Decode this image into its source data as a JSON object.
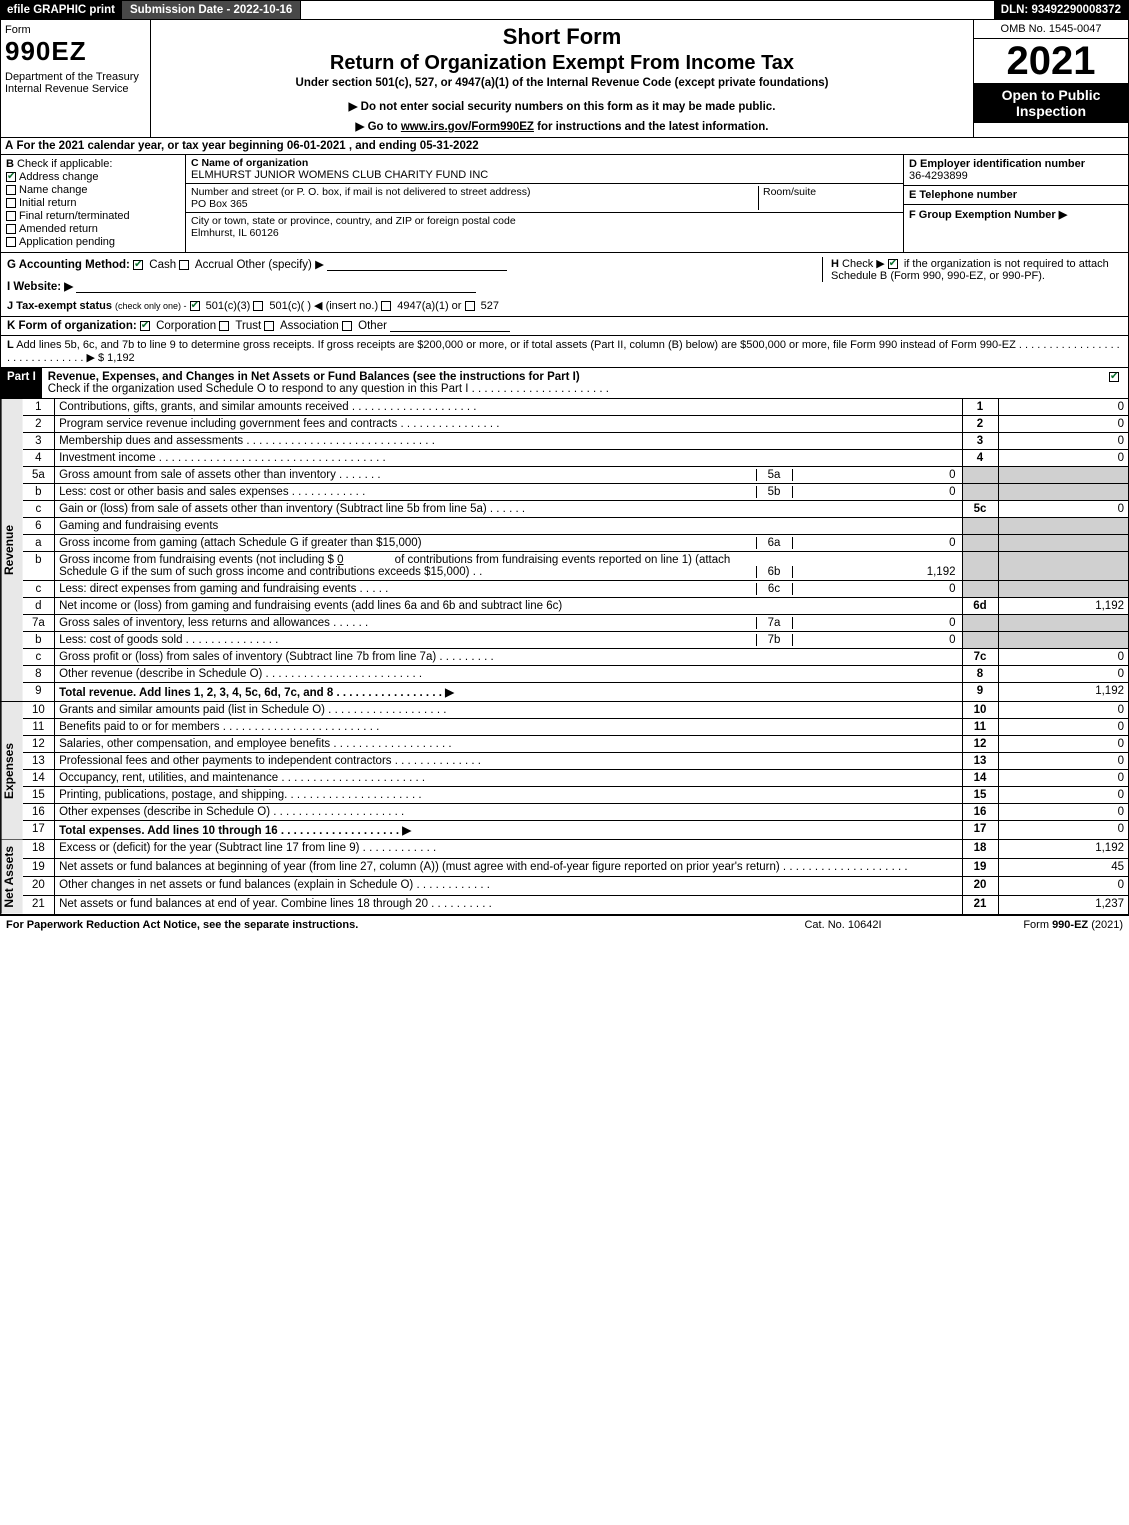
{
  "topbar": {
    "efile": "efile GRAPHIC print",
    "submission": "Submission Date - 2022-10-16",
    "dln": "DLN: 93492290008372"
  },
  "header": {
    "form_word": "Form",
    "form_code": "990EZ",
    "dept": "Department of the Treasury\nInternal Revenue Service",
    "short_form": "Short Form",
    "return_of": "Return of Organization Exempt From Income Tax",
    "under_sec": "Under section 501(c), 527, or 4947(a)(1) of the Internal Revenue Code (except private foundations)",
    "do_not": "▶ Do not enter social security numbers on this form as it may be made public.",
    "go_to_pre": "▶ Go to ",
    "go_to_link": "www.irs.gov/Form990EZ",
    "go_to_post": " for instructions and the latest information.",
    "omb": "OMB No. 1545-0047",
    "year": "2021",
    "open_to": "Open to Public Inspection"
  },
  "line_a": {
    "label": "A",
    "text": "For the 2021 calendar year, or tax year beginning 06-01-2021 , and ending 05-31-2022"
  },
  "section_b": {
    "label": "B",
    "check_if": "Check if applicable:",
    "items": [
      {
        "label": "Address change",
        "checked": true
      },
      {
        "label": "Name change",
        "checked": false
      },
      {
        "label": "Initial return",
        "checked": false
      },
      {
        "label": "Final return/terminated",
        "checked": false
      },
      {
        "label": "Amended return",
        "checked": false
      },
      {
        "label": "Application pending",
        "checked": false
      }
    ]
  },
  "section_c": {
    "name_label": "C Name of organization",
    "name": "ELMHURST JUNIOR WOMENS CLUB CHARITY FUND INC",
    "addr_label": "Number and street (or P. O. box, if mail is not delivered to street address)",
    "addr": "PO Box 365",
    "room_label": "Room/suite",
    "city_label": "City or town, state or province, country, and ZIP or foreign postal code",
    "city": "Elmhurst, IL  60126"
  },
  "section_d": {
    "label": "D Employer identification number",
    "value": "36-4293899"
  },
  "section_e": {
    "label": "E Telephone number",
    "value": ""
  },
  "section_f": {
    "label": "F Group Exemption Number  ▶",
    "value": ""
  },
  "section_g": {
    "label": "G Accounting Method:",
    "cash": "Cash",
    "accrual": "Accrual",
    "other": "Other (specify) ▶"
  },
  "section_h": {
    "label": "H",
    "text1": "Check ▶",
    "text2": "if the organization is not required to attach Schedule B (Form 990, 990-EZ, or 990-PF)."
  },
  "section_i": {
    "label": "I Website: ▶"
  },
  "section_j": {
    "label": "J Tax-exempt status",
    "sub": "(check only one) -",
    "opt1": "501(c)(3)",
    "opt2": "501(c)( )",
    "insert": "◀ (insert no.)",
    "opt3": "4947(a)(1) or",
    "opt4": "527"
  },
  "section_k": {
    "label": "K Form of organization:",
    "corp": "Corporation",
    "trust": "Trust",
    "assoc": "Association",
    "other": "Other"
  },
  "section_l": {
    "label": "L",
    "text": "Add lines 5b, 6c, and 7b to line 9 to determine gross receipts. If gross receipts are $200,000 or more, or if total assets (Part II, column (B) below) are $500,000 or more, file Form 990 instead of Form 990-EZ  .  .  .  .  .  .  .  .  .  .  .  .  .  .  .  .  .  .  .  .  .  .  .  .  .  .  .  .  .  . ▶ $ 1,192"
  },
  "part1": {
    "header": "Part I",
    "title": "Revenue, Expenses, and Changes in Net Assets or Fund Balances (see the instructions for Part I)",
    "check_text": "Check if the organization used Schedule O to respond to any question in this Part I  .  .  .  .  .  .  .  .  .  .  .  .  .  .  .  .  .  .  .  .  .  ."
  },
  "revenue_label": "Revenue",
  "expenses_label": "Expenses",
  "netassets_label": "Net Assets",
  "rows_revenue": [
    {
      "n": "1",
      "desc": "Contributions, gifts, grants, and similar amounts received  .  .  .  .  .  .  .  .  .  .  .  .  .  .  .  .  .  .  .  .",
      "ref": "1",
      "amt": "0"
    },
    {
      "n": "2",
      "desc": "Program service revenue including government fees and contracts  .  .  .  .  .  .  .  .  .  .  .  .  .  .  .  .",
      "ref": "2",
      "amt": "0"
    },
    {
      "n": "3",
      "desc": "Membership dues and assessments  .  .  .  .  .  .  .  .  .  .  .  .  .  .  .  .  .  .  .  .  .  .  .  .  .  .  .  .  .  .",
      "ref": "3",
      "amt": "0"
    },
    {
      "n": "4",
      "desc": "Investment income  .  .  .  .  .  .  .  .  .  .  .  .  .  .  .  .  .  .  .  .  .  .  .  .  .  .  .  .  .  .  .  .  .  .  .  .",
      "ref": "4",
      "amt": "0"
    }
  ],
  "rows_5": [
    {
      "n": "5a",
      "desc": "Gross amount from sale of assets other than inventory  .  .  .  .  .  .  .",
      "sref": "5a",
      "samt": "0"
    },
    {
      "n": "b",
      "desc": "Less: cost or other basis and sales expenses  .  .  .  .  .  .  .  .  .  .  .  .",
      "sref": "5b",
      "samt": "0"
    },
    {
      "n": "c",
      "desc": "Gain or (loss) from sale of assets other than inventory (Subtract line 5b from line 5a)  .  .  .  .  .  .",
      "ref": "5c",
      "amt": "0"
    }
  ],
  "rows_6": {
    "n6": "6",
    "desc6": "Gaming and fundraising events",
    "na": "a",
    "desca": "Gross income from gaming (attach Schedule G if greater than $15,000)",
    "srefa": "6a",
    "samta": "0",
    "nb": "b",
    "descb1": "Gross income from fundraising events (not including $",
    "descb_amt": "0",
    "descb2": "of contributions from fundraising events reported on line 1) (attach Schedule G if the sum of such gross income and contributions exceeds $15,000)   .   .",
    "srefb": "6b",
    "samtb": "1,192",
    "nc": "c",
    "descc": "Less: direct expenses from gaming and fundraising events  .  .  .  .  .",
    "srefc": "6c",
    "samtc": "0",
    "nd": "d",
    "descd": "Net income or (loss) from gaming and fundraising events (add lines 6a and 6b and subtract line 6c)",
    "refd": "6d",
    "amtd": "1,192"
  },
  "rows_7": [
    {
      "n": "7a",
      "desc": "Gross sales of inventory, less returns and allowances  .  .  .  .  .  .",
      "sref": "7a",
      "samt": "0"
    },
    {
      "n": "b",
      "desc": "Less: cost of goods sold       .  .  .  .  .  .  .  .  .  .  .  .  .  .  .",
      "sref": "7b",
      "samt": "0"
    },
    {
      "n": "c",
      "desc": "Gross profit or (loss) from sales of inventory (Subtract line 7b from line 7a)  .  .  .  .  .  .  .  .  .",
      "ref": "7c",
      "amt": "0"
    }
  ],
  "rows_89": [
    {
      "n": "8",
      "desc": "Other revenue (describe in Schedule O)  .  .  .  .  .  .  .  .  .  .  .  .  .  .  .  .  .  .  .  .  .  .  .  .  .",
      "ref": "8",
      "amt": "0"
    },
    {
      "n": "9",
      "desc": "Total revenue. Add lines 1, 2, 3, 4, 5c, 6d, 7c, and 8   .  .  .  .  .  .  .  .  .  .  .  .  .  .  .  .  . ▶",
      "ref": "9",
      "amt": "1,192",
      "bold": true
    }
  ],
  "rows_expenses": [
    {
      "n": "10",
      "desc": "Grants and similar amounts paid (list in Schedule O)  .  .  .  .  .  .  .  .  .  .  .  .  .  .  .  .  .  .  .",
      "ref": "10",
      "amt": "0"
    },
    {
      "n": "11",
      "desc": "Benefits paid to or for members       .  .  .  .  .  .  .  .  .  .  .  .  .  .  .  .  .  .  .  .  .  .  .  .  .",
      "ref": "11",
      "amt": "0"
    },
    {
      "n": "12",
      "desc": "Salaries, other compensation, and employee benefits  .  .  .  .  .  .  .  .  .  .  .  .  .  .  .  .  .  .  .",
      "ref": "12",
      "amt": "0"
    },
    {
      "n": "13",
      "desc": "Professional fees and other payments to independent contractors  .  .  .  .  .  .  .  .  .  .  .  .  .  .",
      "ref": "13",
      "amt": "0"
    },
    {
      "n": "14",
      "desc": "Occupancy, rent, utilities, and maintenance .  .  .  .  .  .  .  .  .  .  .  .  .  .  .  .  .  .  .  .  .  .  .",
      "ref": "14",
      "amt": "0"
    },
    {
      "n": "15",
      "desc": "Printing, publications, postage, and shipping.   .  .  .  .  .  .  .  .  .  .  .  .  .  .  .  .  .  .  .  .  .",
      "ref": "15",
      "amt": "0"
    },
    {
      "n": "16",
      "desc": "Other expenses (describe in Schedule O)      .  .  .  .  .  .  .  .  .  .  .  .  .  .  .  .  .  .  .  .  .",
      "ref": "16",
      "amt": "0"
    },
    {
      "n": "17",
      "desc": "Total expenses. Add lines 10 through 16       .  .  .  .  .  .  .  .  .  .  .  .  .  .  .  .  .  .  . ▶",
      "ref": "17",
      "amt": "0",
      "bold": true
    }
  ],
  "rows_netassets": [
    {
      "n": "18",
      "desc": "Excess or (deficit) for the year (Subtract line 17 from line 9)         .  .  .  .  .  .  .  .  .  .  .  .",
      "ref": "18",
      "amt": "1,192"
    },
    {
      "n": "19",
      "desc": "Net assets or fund balances at beginning of year (from line 27, column (A)) (must agree with end-of-year figure reported on prior year's return) .  .  .  .  .  .  .  .  .  .  .  .  .  .  .  .  .  .  .  .",
      "ref": "19",
      "amt": "45"
    },
    {
      "n": "20",
      "desc": "Other changes in net assets or fund balances (explain in Schedule O) .  .  .  .  .  .  .  .  .  .  .  .",
      "ref": "20",
      "amt": "0"
    },
    {
      "n": "21",
      "desc": "Net assets or fund balances at end of year. Combine lines 18 through 20 .  .  .  .  .  .  .  .  .  .",
      "ref": "21",
      "amt": "1,237"
    }
  ],
  "footer": {
    "left": "For Paperwork Reduction Act Notice, see the separate instructions.",
    "mid": "Cat. No. 10642I",
    "right_pre": "Form ",
    "right_form": "990-EZ",
    "right_post": " (2021)"
  },
  "colors": {
    "black": "#000000",
    "grey_cell": "#d0d0d0",
    "green_check": "#0a6e2d"
  }
}
